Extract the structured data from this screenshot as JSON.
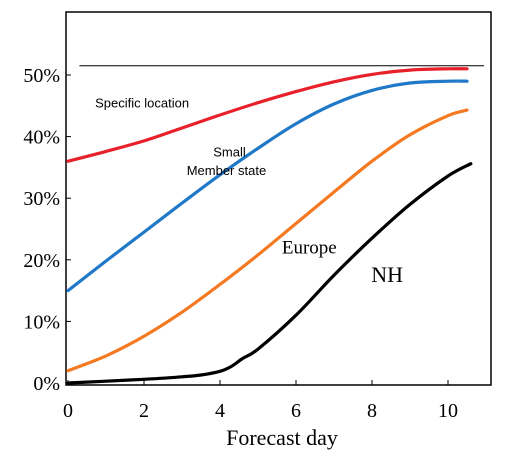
{
  "chart_data": {
    "type": "line",
    "title": "",
    "xlabel": "Forecast day",
    "ylabel": "",
    "xlim": [
      0,
      11
    ],
    "ylim": [
      0,
      58
    ],
    "xticks": [
      0,
      2,
      4,
      6,
      8,
      10
    ],
    "xtick_labels": [
      "0",
      "2",
      "4",
      "6",
      "8",
      "10"
    ],
    "yticks": [
      0,
      10,
      20,
      30,
      40,
      50
    ],
    "ytick_labels": [
      "0%",
      "10%",
      "20%",
      "30%",
      "40%",
      "50%"
    ],
    "grid": false,
    "legend": "none",
    "reference_line": {
      "y": 51.5,
      "x_range": [
        0.3,
        10.95
      ],
      "color": "#000000"
    },
    "series": [
      {
        "name": "Specific location",
        "color": "#e8202a",
        "x": [
          0,
          1,
          2,
          3,
          4,
          5,
          6,
          7,
          8,
          9,
          10,
          10.5
        ],
        "y": [
          36,
          37.6,
          39.3,
          41.4,
          43.5,
          45.5,
          47.3,
          48.9,
          50.1,
          50.8,
          51,
          51
        ]
      },
      {
        "name": "Small\nMember state",
        "color": "#1f78c8",
        "x": [
          0,
          1,
          2,
          3,
          4,
          5,
          6,
          7,
          8,
          9,
          10,
          10.5
        ],
        "y": [
          15,
          19.8,
          24.5,
          29.2,
          33.8,
          38.1,
          42.1,
          45.3,
          47.5,
          48.7,
          49,
          49
        ]
      },
      {
        "name": "Europe",
        "color": "#f47920",
        "x": [
          0,
          1,
          2,
          3,
          4,
          5,
          6,
          7,
          8,
          9,
          10,
          10.5
        ],
        "y": [
          2,
          4.4,
          7.6,
          11.5,
          16,
          20.8,
          25.9,
          31,
          36,
          40.3,
          43.4,
          44.3
        ]
      },
      {
        "name": "NH",
        "color": "#000000",
        "x": [
          0,
          1,
          2,
          3,
          3.5,
          4,
          4.3,
          4.6,
          5,
          6,
          7,
          8,
          9,
          10,
          10.6
        ],
        "y": [
          0,
          0.3,
          0.6,
          1,
          1.3,
          1.9,
          2.7,
          4,
          5.5,
          11,
          17.5,
          23.5,
          29,
          33.6,
          35.6
        ]
      }
    ],
    "annotations": [
      {
        "text": "Specific location",
        "x": 1.95,
        "y": 44.7,
        "style": "sans",
        "anchor": "middle"
      },
      {
        "text": "Small",
        "x": 4.25,
        "y": 36.8,
        "style": "sans",
        "anchor": "middle"
      },
      {
        "text": "Member state",
        "x": 4.17,
        "y": 33.8,
        "style": "sans",
        "anchor": "middle"
      },
      {
        "text": "Europe",
        "x": 6.35,
        "y": 21,
        "style": "serif",
        "anchor": "middle"
      },
      {
        "text": "NH",
        "x": 8.4,
        "y": 16.4,
        "style": "serif-lg",
        "anchor": "middle"
      }
    ]
  }
}
